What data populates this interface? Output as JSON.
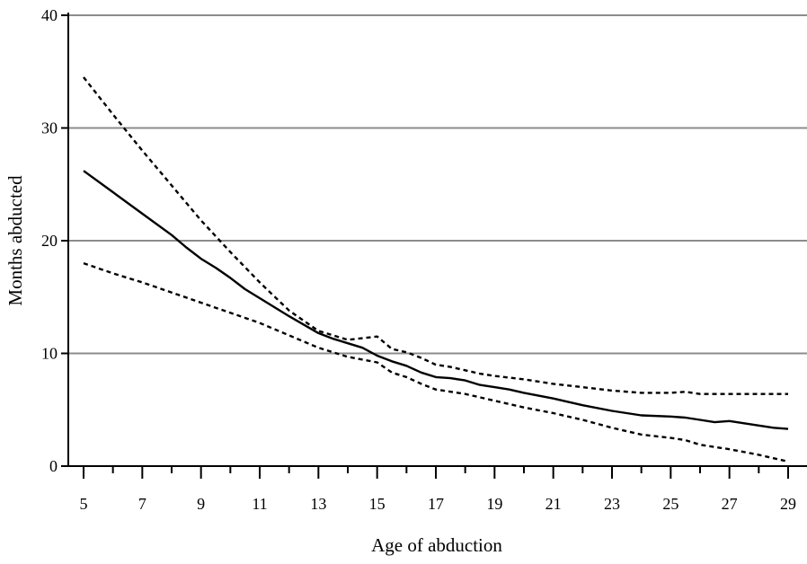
{
  "chart_data": {
    "type": "line",
    "title": "",
    "xlabel": "Age of abduction",
    "ylabel": "Months abducted",
    "xlim": [
      5,
      29
    ],
    "ylim": [
      0,
      40
    ],
    "x_ticks": [
      5,
      7,
      9,
      11,
      13,
      15,
      17,
      19,
      21,
      23,
      25,
      27,
      29
    ],
    "y_ticks": [
      0,
      10,
      20,
      30,
      40
    ],
    "grid": "horizontal",
    "legend": "none",
    "colors": {
      "grid": "#8c8c8c",
      "axis": "#000000",
      "line": "#000000"
    },
    "series": [
      {
        "style": "solid",
        "x": [
          5,
          6,
          7,
          8,
          8.5,
          9,
          9.5,
          10,
          10.5,
          11,
          12,
          13,
          13.5,
          14,
          14.5,
          15,
          15.5,
          16,
          16.5,
          17,
          17.5,
          18,
          18.5,
          19,
          19.5,
          20,
          21,
          22,
          23,
          24,
          25,
          25.5,
          26,
          26.5,
          27,
          27.5,
          28,
          28.5,
          29
        ],
        "values": [
          26.2,
          24.3,
          22.4,
          20.5,
          19.4,
          18.4,
          17.6,
          16.7,
          15.7,
          14.9,
          13.3,
          11.8,
          11.3,
          10.9,
          10.5,
          9.8,
          9.3,
          8.9,
          8.3,
          7.9,
          7.8,
          7.6,
          7.2,
          7.0,
          6.8,
          6.5,
          6.0,
          5.4,
          4.9,
          4.5,
          4.4,
          4.3,
          4.1,
          3.9,
          4.0,
          3.8,
          3.6,
          3.4,
          3.3
        ]
      },
      {
        "style": "dashed",
        "x": [
          5,
          6,
          7,
          8,
          9,
          10,
          11,
          12,
          13,
          14,
          15,
          15.5,
          16,
          16.5,
          17,
          17.5,
          18,
          18.5,
          19,
          20,
          21,
          22,
          23,
          24,
          25,
          25.5,
          26,
          27,
          28,
          29
        ],
        "values": [
          34.5,
          31.2,
          28.0,
          24.9,
          21.8,
          19.0,
          16.3,
          13.8,
          12.0,
          11.2,
          11.5,
          10.4,
          10.1,
          9.6,
          9.0,
          8.8,
          8.5,
          8.2,
          8.0,
          7.7,
          7.3,
          7.0,
          6.7,
          6.5,
          6.5,
          6.6,
          6.4,
          6.4,
          6.4,
          6.4
        ]
      },
      {
        "style": "dashed",
        "x": [
          5,
          6,
          7,
          8,
          9,
          10,
          11,
          12,
          13,
          14,
          15,
          15.5,
          16,
          16.5,
          17,
          17.5,
          18,
          18.5,
          19,
          20,
          21,
          22,
          23,
          24,
          25,
          25.5,
          26,
          27,
          28,
          29
        ],
        "values": [
          18.0,
          17.1,
          16.3,
          15.4,
          14.5,
          13.6,
          12.7,
          11.6,
          10.5,
          9.7,
          9.2,
          8.3,
          7.9,
          7.3,
          6.8,
          6.6,
          6.4,
          6.1,
          5.8,
          5.2,
          4.7,
          4.1,
          3.4,
          2.8,
          2.5,
          2.3,
          1.9,
          1.5,
          1.0,
          0.4
        ]
      }
    ]
  }
}
